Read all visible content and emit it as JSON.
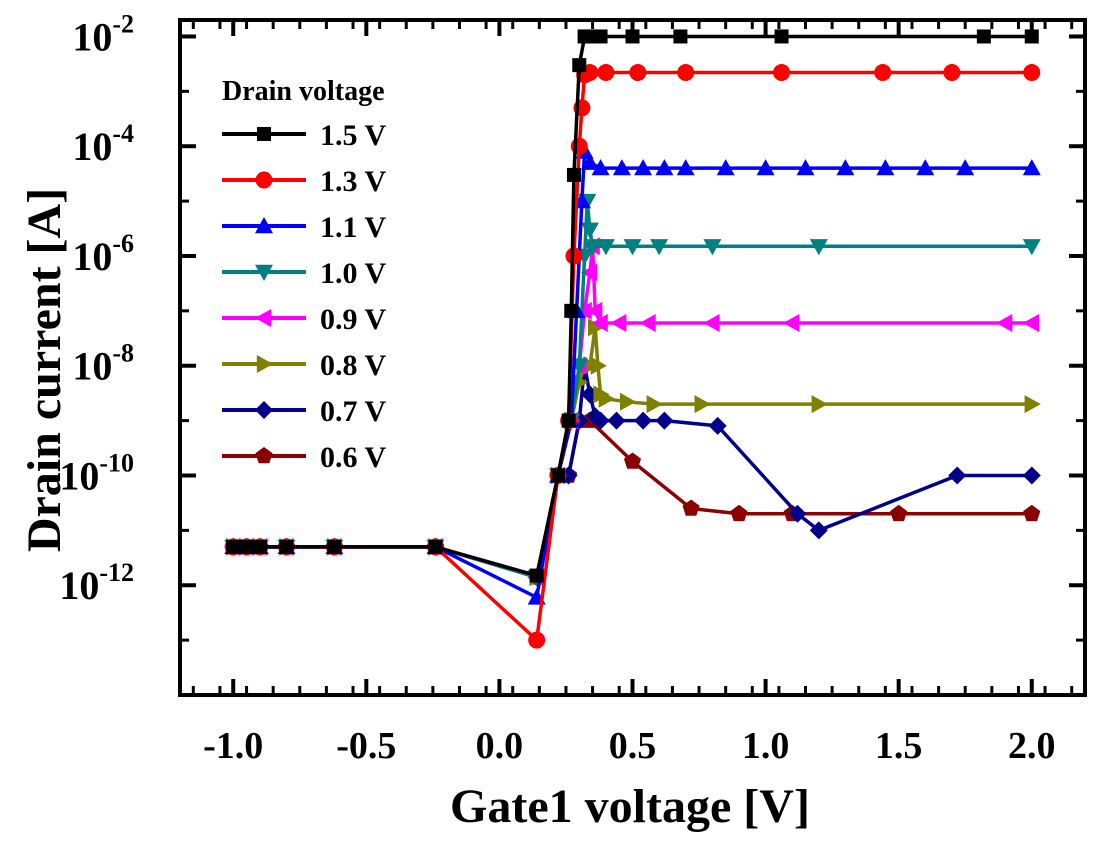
{
  "chart_data": {
    "type": "line",
    "xlabel": "Gate1 voltage [V]",
    "ylabel": "Drain current [A]",
    "y_scale": "log",
    "xlim": [
      -1.2,
      2.2
    ],
    "ylim_exp": [
      -14,
      -1.7
    ],
    "x_ticks": [
      {
        "v": -1.0,
        "label": "-1.0"
      },
      {
        "v": -0.5,
        "label": "-0.5"
      },
      {
        "v": 0.0,
        "label": "0.0"
      },
      {
        "v": 0.5,
        "label": "0.5"
      },
      {
        "v": 1.0,
        "label": "1.0"
      },
      {
        "v": 1.5,
        "label": "1.5"
      },
      {
        "v": 2.0,
        "label": "2.0"
      }
    ],
    "y_ticks": [
      {
        "e": -2,
        "base": "10",
        "sup": "-2"
      },
      {
        "e": -4,
        "base": "10",
        "sup": "-4"
      },
      {
        "e": -6,
        "base": "10",
        "sup": "-6"
      },
      {
        "e": -8,
        "base": "10",
        "sup": "-8"
      },
      {
        "e": -10,
        "base": "10",
        "sup": "-10"
      },
      {
        "e": -12,
        "base": "10",
        "sup": "-12"
      }
    ],
    "legend_title": "Drain voltage",
    "legend_position": "top-left",
    "grid": false,
    "series": [
      {
        "name": "1.5 V",
        "color": "#000000",
        "marker": "square",
        "x": [
          -1.0,
          -0.95,
          -0.9,
          -0.8,
          -0.62,
          -0.24,
          0.14,
          0.22,
          0.26,
          0.27,
          0.28,
          0.3,
          0.32,
          0.34,
          0.38,
          0.5,
          0.68,
          1.06,
          1.82,
          2.0
        ],
        "y": [
          5e-12,
          5e-12,
          5e-12,
          5e-12,
          5e-12,
          5e-12,
          1.5e-12,
          1e-10,
          1e-09,
          1e-07,
          3e-05,
          0.003,
          0.01,
          0.01,
          0.01,
          0.01,
          0.01,
          0.01,
          0.01,
          0.01
        ]
      },
      {
        "name": "1.3 V",
        "color": "#ff0000",
        "marker": "circle",
        "x": [
          -1.0,
          -0.95,
          -0.9,
          -0.8,
          -0.62,
          -0.24,
          0.14,
          0.22,
          0.26,
          0.28,
          0.3,
          0.31,
          0.32,
          0.34,
          0.4,
          0.52,
          0.7,
          1.06,
          1.44,
          1.7,
          2.0
        ],
        "y": [
          5e-12,
          5e-12,
          5e-12,
          5e-12,
          5e-12,
          5e-12,
          1e-13,
          1e-10,
          1e-09,
          1e-06,
          0.0001,
          0.0005,
          0.002,
          0.0022,
          0.0022,
          0.0022,
          0.0022,
          0.0022,
          0.0022,
          0.0022,
          0.0022
        ]
      },
      {
        "name": "1.1 V",
        "color": "#0000ff",
        "marker": "triangle-up",
        "x": [
          -1.0,
          -0.95,
          -0.9,
          -0.8,
          -0.62,
          -0.24,
          0.14,
          0.22,
          0.27,
          0.29,
          0.31,
          0.32,
          0.34,
          0.38,
          0.46,
          0.54,
          0.62,
          0.7,
          0.85,
          1.0,
          1.15,
          1.3,
          1.45,
          1.6,
          1.75,
          2.0
        ],
        "y": [
          5e-12,
          5e-12,
          5e-12,
          5e-12,
          5e-12,
          5e-12,
          6e-13,
          1e-10,
          1e-09,
          1e-07,
          1e-05,
          8e-05,
          5e-05,
          4e-05,
          4e-05,
          4e-05,
          4e-05,
          4e-05,
          4e-05,
          4e-05,
          4e-05,
          4e-05,
          4e-05,
          4e-05,
          4e-05,
          4e-05
        ]
      },
      {
        "name": "1.0 V",
        "color": "#008080",
        "marker": "triangle-down",
        "x": [
          -1.0,
          -0.95,
          -0.9,
          -0.8,
          -0.62,
          -0.24,
          0.14,
          0.22,
          0.27,
          0.3,
          0.32,
          0.33,
          0.34,
          0.35,
          0.4,
          0.5,
          0.6,
          0.8,
          1.2,
          2.0
        ],
        "y": [
          5e-12,
          5e-12,
          5e-12,
          5e-12,
          5e-12,
          5e-12,
          1.4e-12,
          1e-10,
          1e-09,
          1e-08,
          1e-06,
          1e-05,
          3e-06,
          1.5e-06,
          1.5e-06,
          1.5e-06,
          1.5e-06,
          1.5e-06,
          1.5e-06,
          1.5e-06
        ]
      },
      {
        "name": "0.9 V",
        "color": "#ff00ff",
        "marker": "triangle-left",
        "x": [
          -1.0,
          -0.95,
          -0.9,
          -0.8,
          -0.62,
          -0.24,
          0.14,
          0.22,
          0.27,
          0.3,
          0.32,
          0.34,
          0.35,
          0.36,
          0.38,
          0.45,
          0.56,
          0.8,
          1.1,
          1.9,
          2.0
        ],
        "y": [
          5e-12,
          5e-12,
          5e-12,
          5e-12,
          5e-12,
          5e-12,
          1.4e-12,
          1e-10,
          1e-09,
          1e-08,
          1e-07,
          5e-07,
          1.5e-06,
          1e-07,
          6e-08,
          6e-08,
          6e-08,
          6e-08,
          6e-08,
          6e-08,
          6e-08
        ]
      },
      {
        "name": "0.8 V",
        "color": "#808000",
        "marker": "triangle-right",
        "x": [
          -1.0,
          -0.95,
          -0.9,
          -0.8,
          -0.62,
          -0.24,
          0.14,
          0.22,
          0.27,
          0.3,
          0.32,
          0.34,
          0.36,
          0.37,
          0.38,
          0.4,
          0.48,
          0.58,
          0.76,
          1.2,
          2.0
        ],
        "y": [
          5e-12,
          5e-12,
          5e-12,
          5e-12,
          5e-12,
          5e-12,
          1.4e-12,
          1e-10,
          1e-09,
          5e-09,
          1e-08,
          1e-08,
          5e-08,
          1e-08,
          3e-09,
          2.5e-09,
          2.2e-09,
          2e-09,
          2e-09,
          2e-09,
          2e-09
        ]
      },
      {
        "name": "0.7 V",
        "color": "#00008b",
        "marker": "diamond",
        "x": [
          -1.0,
          -0.95,
          -0.9,
          -0.8,
          -0.62,
          -0.24,
          0.14,
          0.22,
          0.26,
          0.3,
          0.32,
          0.34,
          0.36,
          0.38,
          0.44,
          0.54,
          0.62,
          0.82,
          1.12,
          1.2,
          1.72,
          2.0
        ],
        "y": [
          5e-12,
          5e-12,
          5e-12,
          5e-12,
          5e-12,
          5e-12,
          1.4e-12,
          1e-10,
          1e-10,
          1e-09,
          1e-08,
          3e-09,
          1.2e-09,
          1e-09,
          1e-09,
          1e-09,
          1e-09,
          8e-10,
          2e-11,
          1e-11,
          1e-10,
          1e-10
        ]
      },
      {
        "name": "0.6 V",
        "color": "#8b0000",
        "marker": "pentagon",
        "x": [
          -1.0,
          -0.95,
          -0.9,
          -0.8,
          -0.62,
          -0.24,
          0.14,
          0.22,
          0.26,
          0.3,
          0.34,
          0.5,
          0.72,
          0.9,
          1.1,
          1.5,
          2.0
        ],
        "y": [
          5e-12,
          5e-12,
          5e-12,
          5e-12,
          5e-12,
          5e-12,
          1.4e-12,
          1e-10,
          1e-10,
          1e-09,
          1e-09,
          1.8e-10,
          2.5e-11,
          2e-11,
          2e-11,
          2e-11,
          2e-11
        ]
      }
    ]
  }
}
